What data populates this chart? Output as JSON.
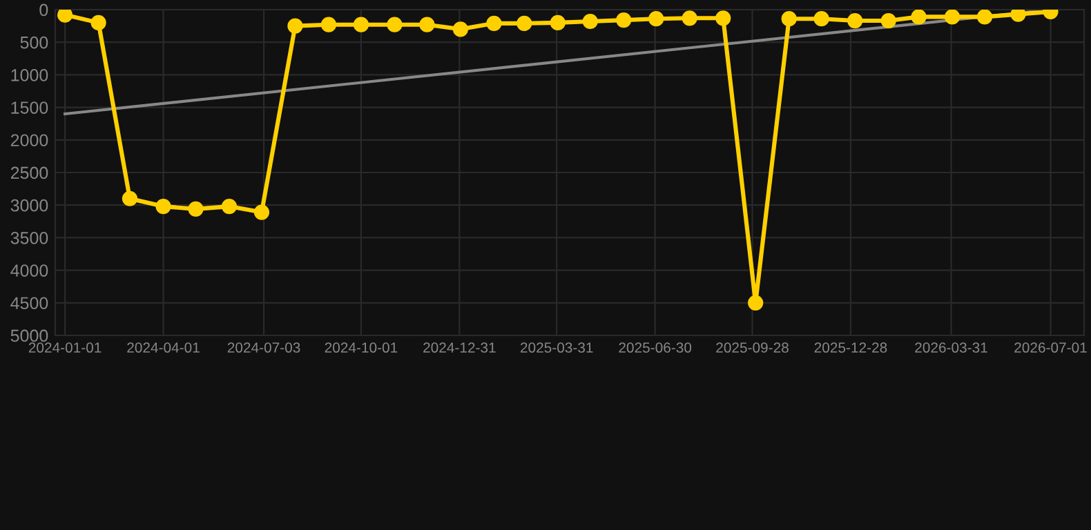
{
  "chart_data": {
    "type": "line",
    "x": [
      "2024-01-01",
      "2024-02-01",
      "2024-03-01",
      "2024-04-01",
      "2024-05-01",
      "2024-06-01",
      "2024-07-01",
      "2024-08-01",
      "2024-09-01",
      "2024-10-01",
      "2024-11-01",
      "2024-12-01",
      "2025-01-01",
      "2025-02-01",
      "2025-03-01",
      "2025-04-01",
      "2025-05-01",
      "2025-06-01",
      "2025-07-01",
      "2025-08-01",
      "2025-09-01",
      "2025-10-01",
      "2025-11-01",
      "2025-12-01",
      "2026-01-01",
      "2026-02-01",
      "2026-03-01",
      "2026-04-01",
      "2026-05-01",
      "2026-06-01",
      "2026-07-01"
    ],
    "series": [
      {
        "color": "#ffd000",
        "marker": "circle",
        "values": [
          80,
          200,
          2900,
          3020,
          3060,
          3020,
          3110,
          250,
          230,
          230,
          230,
          230,
          300,
          210,
          210,
          200,
          180,
          160,
          140,
          130,
          130,
          4500,
          140,
          140,
          170,
          170,
          110,
          110,
          110,
          70,
          30
        ]
      },
      {
        "color": "#888888",
        "marker": "none",
        "x": [
          "2024-01-01",
          "2026-07-01"
        ],
        "values": [
          1600,
          0
        ]
      }
    ],
    "xlim": [
      "2023-12-23",
      "2026-08-01"
    ],
    "xticks": [
      "2024-01-01",
      "2024-04-01",
      "2024-07-03",
      "2024-10-01",
      "2024-12-31",
      "2025-03-31",
      "2025-06-30",
      "2025-09-28",
      "2025-12-28",
      "2026-03-31",
      "2026-07-01"
    ],
    "ylim": [
      5000,
      0
    ],
    "yticks": [
      0,
      500,
      1000,
      1500,
      2000,
      2500,
      3000,
      3500,
      4000,
      4500,
      5000
    ],
    "grid": true,
    "line_style": "solid"
  }
}
